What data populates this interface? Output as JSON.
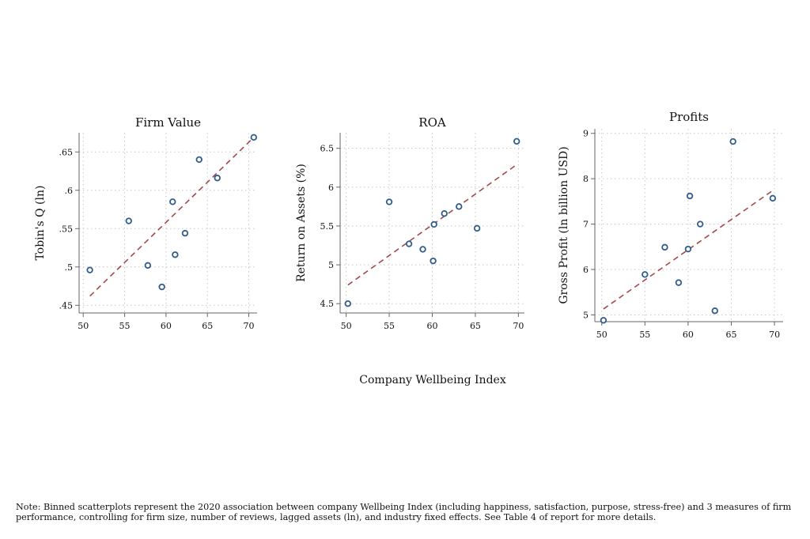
{
  "shared_xlabel": "Company Wellbeing Index",
  "note": "Note: Binned scatterplots represent the 2020 association between company Wellbeing Index (including happiness, satisfaction, purpose, stress-free) and 3 measures of firm performance, controlling for firm size, number of reviews, lagged assets (ln), and industry fixed effects. See Table 4 of report for more details.",
  "chart_data": [
    {
      "type": "scatter",
      "title": "Firm Value",
      "xlabel": "Company Wellbeing Index",
      "ylabel": "Tobin's Q (ln)",
      "xlim": [
        49.5,
        71.0
      ],
      "ylim": [
        0.44,
        0.675
      ],
      "xticks": [
        50,
        55,
        60,
        65,
        70
      ],
      "yticks": [
        0.45,
        0.5,
        0.55,
        0.6,
        0.65
      ],
      "yticklabels": [
        ".45",
        ".5",
        ".55",
        ".6",
        ".65"
      ],
      "points": {
        "x": [
          50.8,
          55.5,
          57.8,
          59.5,
          60.8,
          61.1,
          62.3,
          64.0,
          66.2,
          70.6
        ],
        "y": [
          0.496,
          0.56,
          0.502,
          0.474,
          0.585,
          0.516,
          0.544,
          0.64,
          0.616,
          0.669
        ]
      },
      "fit_line": {
        "x": [
          50.8,
          70.6
        ],
        "y": [
          0.462,
          0.669
        ],
        "style": "dashed"
      }
    },
    {
      "type": "scatter",
      "title": "ROA",
      "xlabel": "Company Wellbeing Index",
      "ylabel": "Return on Assets (%)",
      "xlim": [
        49.3,
        70.7
      ],
      "ylim": [
        4.38,
        6.7
      ],
      "xticks": [
        50,
        55,
        60,
        65,
        70
      ],
      "yticks": [
        4.5,
        5,
        5.5,
        6,
        6.5
      ],
      "yticklabels": [
        "4.5",
        "5",
        "5.5",
        "6",
        "6.5"
      ],
      "points": {
        "x": [
          50.2,
          55.0,
          57.3,
          58.9,
          60.1,
          60.2,
          61.4,
          63.1,
          65.2,
          69.8
        ],
        "y": [
          4.5,
          5.81,
          5.27,
          5.2,
          5.05,
          5.52,
          5.66,
          5.75,
          5.47,
          6.59
        ]
      },
      "fit_line": {
        "x": [
          50.2,
          69.8
        ],
        "y": [
          4.74,
          6.29
        ],
        "style": "dashed"
      }
    },
    {
      "type": "scatter",
      "title": "Profits",
      "xlabel": "Company Wellbeing Index",
      "ylabel": "Gross Profit (ln billion USD)",
      "xlim": [
        49.2,
        71.0
      ],
      "ylim": [
        4.85,
        9.1
      ],
      "xticks": [
        50,
        55,
        60,
        65,
        70
      ],
      "yticks": [
        5,
        6,
        7,
        8,
        9
      ],
      "yticklabels": [
        "5",
        "6",
        "7",
        "8",
        "9"
      ],
      "points": {
        "x": [
          50.2,
          55.0,
          57.3,
          58.9,
          60.0,
          60.2,
          61.4,
          63.1,
          65.2,
          69.8
        ],
        "y": [
          4.88,
          5.89,
          6.49,
          5.71,
          6.45,
          7.62,
          7.0,
          5.09,
          8.82,
          7.57
        ]
      },
      "fit_line": {
        "x": [
          50.2,
          69.8
        ],
        "y": [
          5.13,
          7.74
        ],
        "style": "dashed"
      }
    }
  ]
}
